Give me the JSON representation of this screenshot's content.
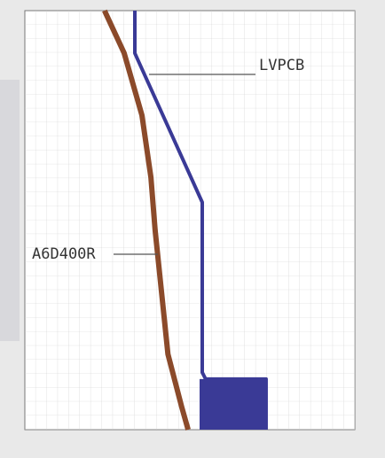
{
  "chart_data": {
    "type": "line",
    "xlim": [
      1,
      1000
    ],
    "ylim": [
      0.01,
      10000
    ],
    "xlog": true,
    "ylog": true,
    "grid": true,
    "series": [
      {
        "name": "A6D400R",
        "color": "#8b4a2a",
        "x": [
          5.3,
          8,
          11.6,
          14,
          15.3,
          17.5,
          20,
          26.7,
          30.5
        ],
        "values": [
          10000,
          2460,
          318,
          41,
          7.1,
          0.92,
          0.12,
          0.021,
          0.01
        ]
      },
      {
        "name": "LVPCB",
        "color": "#3a3a96",
        "x": [
          10,
          10,
          41,
          41,
          44,
          156,
          156
        ],
        "values": [
          10000,
          2460,
          18,
          0.066,
          0.053,
          0.053,
          0.01
        ]
      }
    ]
  }
}
